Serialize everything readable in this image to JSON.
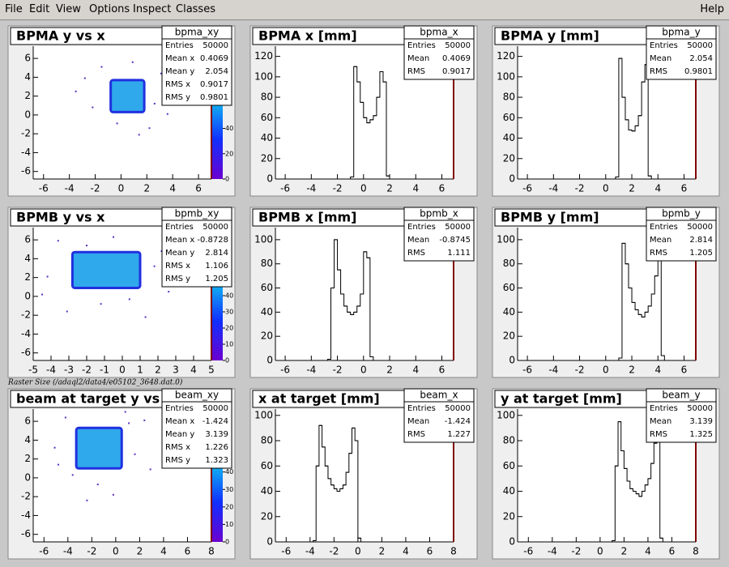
{
  "menu": {
    "items": [
      "File",
      "Edit",
      "View",
      "Options",
      "Inspect",
      "Classes"
    ],
    "help": "Help"
  },
  "note": "Raster Size (/adaql2/data4/e05102_3648.dat.0)",
  "pads": [
    {
      "type": "hist2d",
      "title": "BPMA y vs x",
      "xlim": [
        -6.8,
        7
      ],
      "ylim": [
        -6.8,
        7.3
      ],
      "xticks": [
        -6,
        -4,
        -2,
        0,
        2,
        4,
        6
      ],
      "yticks": [
        -6,
        -4,
        -2,
        0,
        2,
        4,
        6
      ],
      "palette": {
        "zlim": [
          0,
          105
        ],
        "ticks": [
          0,
          20,
          40
        ]
      },
      "core": {
        "x": [
          -0.8,
          1.8
        ],
        "y": [
          0.3,
          3.7
        ]
      },
      "scatter": {
        "x": [
          -3.5,
          -2.2,
          -1.5,
          2.6,
          3.1,
          4.2,
          -0.3,
          0.9,
          2.2,
          -2.8,
          1.4,
          3.6
        ],
        "y": [
          2.5,
          0.8,
          5.1,
          1.2,
          4.4,
          2.0,
          -0.9,
          5.6,
          -1.4,
          3.9,
          -2.1,
          0.1
        ]
      },
      "stats": {
        "name": "bpma_xy",
        "rows": [
          [
            "Entries",
            "50000"
          ],
          [
            "Mean x",
            "0.4069"
          ],
          [
            "Mean y",
            "2.054"
          ],
          [
            "RMS x",
            "0.9017"
          ],
          [
            "RMS y",
            "0.9801"
          ]
        ]
      }
    },
    {
      "type": "hist1d",
      "title": "BPMA x [mm]",
      "xlim": [
        -6.75,
        6.9
      ],
      "ylim": [
        0,
        130
      ],
      "xticks": [
        -6,
        -4,
        -2,
        0,
        2,
        4,
        6
      ],
      "yticks": [
        0,
        20,
        40,
        60,
        80,
        100,
        120
      ],
      "bins": [
        -1.25,
        -1,
        -0.75,
        -0.5,
        -0.25,
        0,
        0.25,
        0.5,
        0.75,
        1,
        1.25,
        1.5,
        1.75,
        2,
        2.25
      ],
      "counts": [
        0,
        2,
        110,
        95,
        75,
        60,
        55,
        58,
        62,
        80,
        105,
        95,
        3,
        0
      ],
      "stats": {
        "name": "bpma_x",
        "rows": [
          [
            "Entries",
            "50000"
          ],
          [
            "Mean",
            "0.4069"
          ],
          [
            "RMS",
            "0.9017"
          ]
        ]
      }
    },
    {
      "type": "hist1d",
      "title": "BPMA y [mm]",
      "xlim": [
        -6.75,
        6.9
      ],
      "ylim": [
        0,
        130
      ],
      "xticks": [
        -6,
        -4,
        -2,
        0,
        2,
        4,
        6
      ],
      "yticks": [
        0,
        20,
        40,
        60,
        80,
        100,
        120
      ],
      "bins": [
        0.5,
        0.75,
        1,
        1.25,
        1.5,
        1.75,
        2,
        2.25,
        2.5,
        2.75,
        3,
        3.25,
        3.5,
        3.75
      ],
      "counts": [
        0,
        2,
        118,
        80,
        58,
        48,
        47,
        52,
        62,
        95,
        112,
        3,
        0
      ],
      "stats": {
        "name": "bpma_y",
        "rows": [
          [
            "Entries",
            "50000"
          ],
          [
            "Mean",
            "2.054"
          ],
          [
            "RMS",
            "0.9801"
          ]
        ]
      }
    },
    {
      "type": "hist2d",
      "title": "BPMB y vs x",
      "xlim": [
        -5,
        5
      ],
      "ylim": [
        -6.8,
        7.3
      ],
      "xticks": [
        -5,
        -4,
        -3,
        -2,
        -1,
        0,
        1,
        2,
        3,
        4,
        5
      ],
      "yticks": [
        -6,
        -4,
        -2,
        0,
        2,
        4,
        6
      ],
      "palette": {
        "zlim": [
          0,
          82
        ],
        "ticks": [
          0,
          10,
          20,
          30,
          40
        ]
      },
      "core": {
        "x": [
          -2.8,
          1.0
        ],
        "y": [
          0.9,
          4.7
        ]
      },
      "scatter": {
        "x": [
          -4.2,
          -3.6,
          -1.2,
          1.8,
          2.6,
          -0.5,
          -3.1,
          1.3,
          -2.0,
          0.4,
          2.2,
          -4.5
        ],
        "y": [
          2.1,
          5.9,
          -0.8,
          3.2,
          0.5,
          6.3,
          -1.6,
          -2.2,
          5.4,
          -0.3,
          4.8,
          0.2
        ]
      },
      "stats": {
        "name": "bpmb_xy",
        "rows": [
          [
            "Entries",
            "50000"
          ],
          [
            "Mean x",
            "-0.8728"
          ],
          [
            "Mean y",
            "2.814"
          ],
          [
            "RMS x",
            "1.106"
          ],
          [
            "RMS y",
            "1.205"
          ]
        ]
      }
    },
    {
      "type": "hist1d",
      "title": "BPMB x [mm]",
      "xlim": [
        -6.75,
        6.9
      ],
      "ylim": [
        0,
        110
      ],
      "xticks": [
        -6,
        -4,
        -2,
        0,
        2,
        4,
        6
      ],
      "yticks": [
        0,
        20,
        40,
        60,
        80,
        100
      ],
      "bins": [
        -3,
        -2.75,
        -2.5,
        -2.25,
        -2,
        -1.75,
        -1.5,
        -1.25,
        -1,
        -0.75,
        -0.5,
        -0.25,
        0,
        0.25,
        0.5,
        0.75,
        1,
        1.25
      ],
      "counts": [
        0,
        1,
        60,
        100,
        75,
        55,
        45,
        40,
        38,
        40,
        45,
        55,
        90,
        85,
        3,
        0,
        0
      ],
      "stats": {
        "name": "bpmb_x",
        "rows": [
          [
            "Entries",
            "50000"
          ],
          [
            "Mean",
            "-0.8745"
          ],
          [
            "RMS",
            "1.111"
          ]
        ]
      }
    },
    {
      "type": "hist1d",
      "title": "BPMB y [mm]",
      "xlim": [
        -6.75,
        6.9
      ],
      "ylim": [
        0,
        110
      ],
      "xticks": [
        -6,
        -4,
        -2,
        0,
        2,
        4,
        6
      ],
      "yticks": [
        0,
        20,
        40,
        60,
        80,
        100
      ],
      "bins": [
        0.75,
        1,
        1.25,
        1.5,
        1.75,
        2,
        2.25,
        2.5,
        2.75,
        3,
        3.25,
        3.5,
        3.75,
        4,
        4.25,
        4.5,
        4.75,
        5
      ],
      "counts": [
        0,
        2,
        97,
        80,
        60,
        48,
        42,
        38,
        36,
        40,
        45,
        55,
        70,
        92,
        4,
        0,
        0
      ],
      "stats": {
        "name": "bpmb_y",
        "rows": [
          [
            "Entries",
            "50000"
          ],
          [
            "Mean",
            "2.814"
          ],
          [
            "RMS",
            "1.205"
          ]
        ]
      }
    },
    {
      "type": "hist2d",
      "title": "beam at target y vs x",
      "xlim": [
        -6.9,
        8
      ],
      "ylim": [
        -6.8,
        7.3
      ],
      "xticks": [
        -6,
        -4,
        -2,
        0,
        2,
        4,
        6,
        8
      ],
      "yticks": [
        -6,
        -4,
        -2,
        0,
        2,
        4,
        6
      ],
      "palette": {
        "zlim": [
          0,
          76
        ],
        "ticks": [
          0,
          10,
          20,
          30,
          40
        ]
      },
      "core": {
        "x": [
          -3.3,
          0.5
        ],
        "y": [
          1.0,
          5.3
        ]
      },
      "scatter": {
        "x": [
          -5.1,
          -4.2,
          -1.5,
          1.6,
          2.4,
          -0.2,
          -3.6,
          1.1,
          -2.4,
          2.9,
          -4.8,
          0.8
        ],
        "y": [
          3.2,
          6.4,
          -0.7,
          2.5,
          6.1,
          -1.8,
          0.3,
          5.8,
          -2.4,
          0.9,
          1.4,
          7.0
        ]
      },
      "stats": {
        "name": "beam_xy",
        "rows": [
          [
            "Entries",
            "50000"
          ],
          [
            "Mean x",
            "-1.424"
          ],
          [
            "Mean y",
            "3.139"
          ],
          [
            "RMS x",
            "1.226"
          ],
          [
            "RMS y",
            "1.323"
          ]
        ]
      }
    },
    {
      "type": "hist1d",
      "title": "x at target [mm]",
      "xlim": [
        -6.9,
        8
      ],
      "ylim": [
        0,
        105
      ],
      "xticks": [
        -6,
        -4,
        -2,
        0,
        2,
        4,
        6,
        8
      ],
      "yticks": [
        0,
        20,
        40,
        60,
        80,
        100
      ],
      "bins": [
        -4,
        -3.75,
        -3.5,
        -3.25,
        -3,
        -2.75,
        -2.5,
        -2.25,
        -2,
        -1.75,
        -1.5,
        -1.25,
        -1,
        -0.75,
        -0.5,
        -0.25,
        0,
        0.25,
        0.5,
        0.75,
        1
      ],
      "counts": [
        0,
        1,
        60,
        92,
        75,
        60,
        50,
        45,
        42,
        40,
        42,
        45,
        55,
        70,
        90,
        80,
        3,
        0,
        0,
        0
      ],
      "stats": {
        "name": "beam_x",
        "rows": [
          [
            "Entries",
            "50000"
          ],
          [
            "Mean",
            "-1.424"
          ],
          [
            "RMS",
            "1.227"
          ]
        ]
      }
    },
    {
      "type": "hist1d",
      "title": "y at target [mm]",
      "xlim": [
        -6.9,
        8
      ],
      "ylim": [
        0,
        105
      ],
      "xticks": [
        -6,
        -4,
        -2,
        0,
        2,
        4,
        6,
        8
      ],
      "yticks": [
        0,
        20,
        40,
        60,
        80,
        100
      ],
      "bins": [
        0.75,
        1,
        1.25,
        1.5,
        1.75,
        2,
        2.25,
        2.5,
        2.75,
        3,
        3.25,
        3.5,
        3.75,
        4,
        4.25,
        4.5,
        4.75,
        5,
        5.25,
        5.5,
        5.75,
        6
      ],
      "counts": [
        0,
        1,
        60,
        95,
        72,
        58,
        48,
        42,
        40,
        38,
        36,
        40,
        45,
        50,
        62,
        78,
        82,
        3,
        0,
        0,
        0
      ],
      "stats": {
        "name": "beam_y",
        "rows": [
          [
            "Entries",
            "50000"
          ],
          [
            "Mean",
            "3.139"
          ],
          [
            "RMS",
            "1.325"
          ]
        ]
      }
    }
  ]
}
